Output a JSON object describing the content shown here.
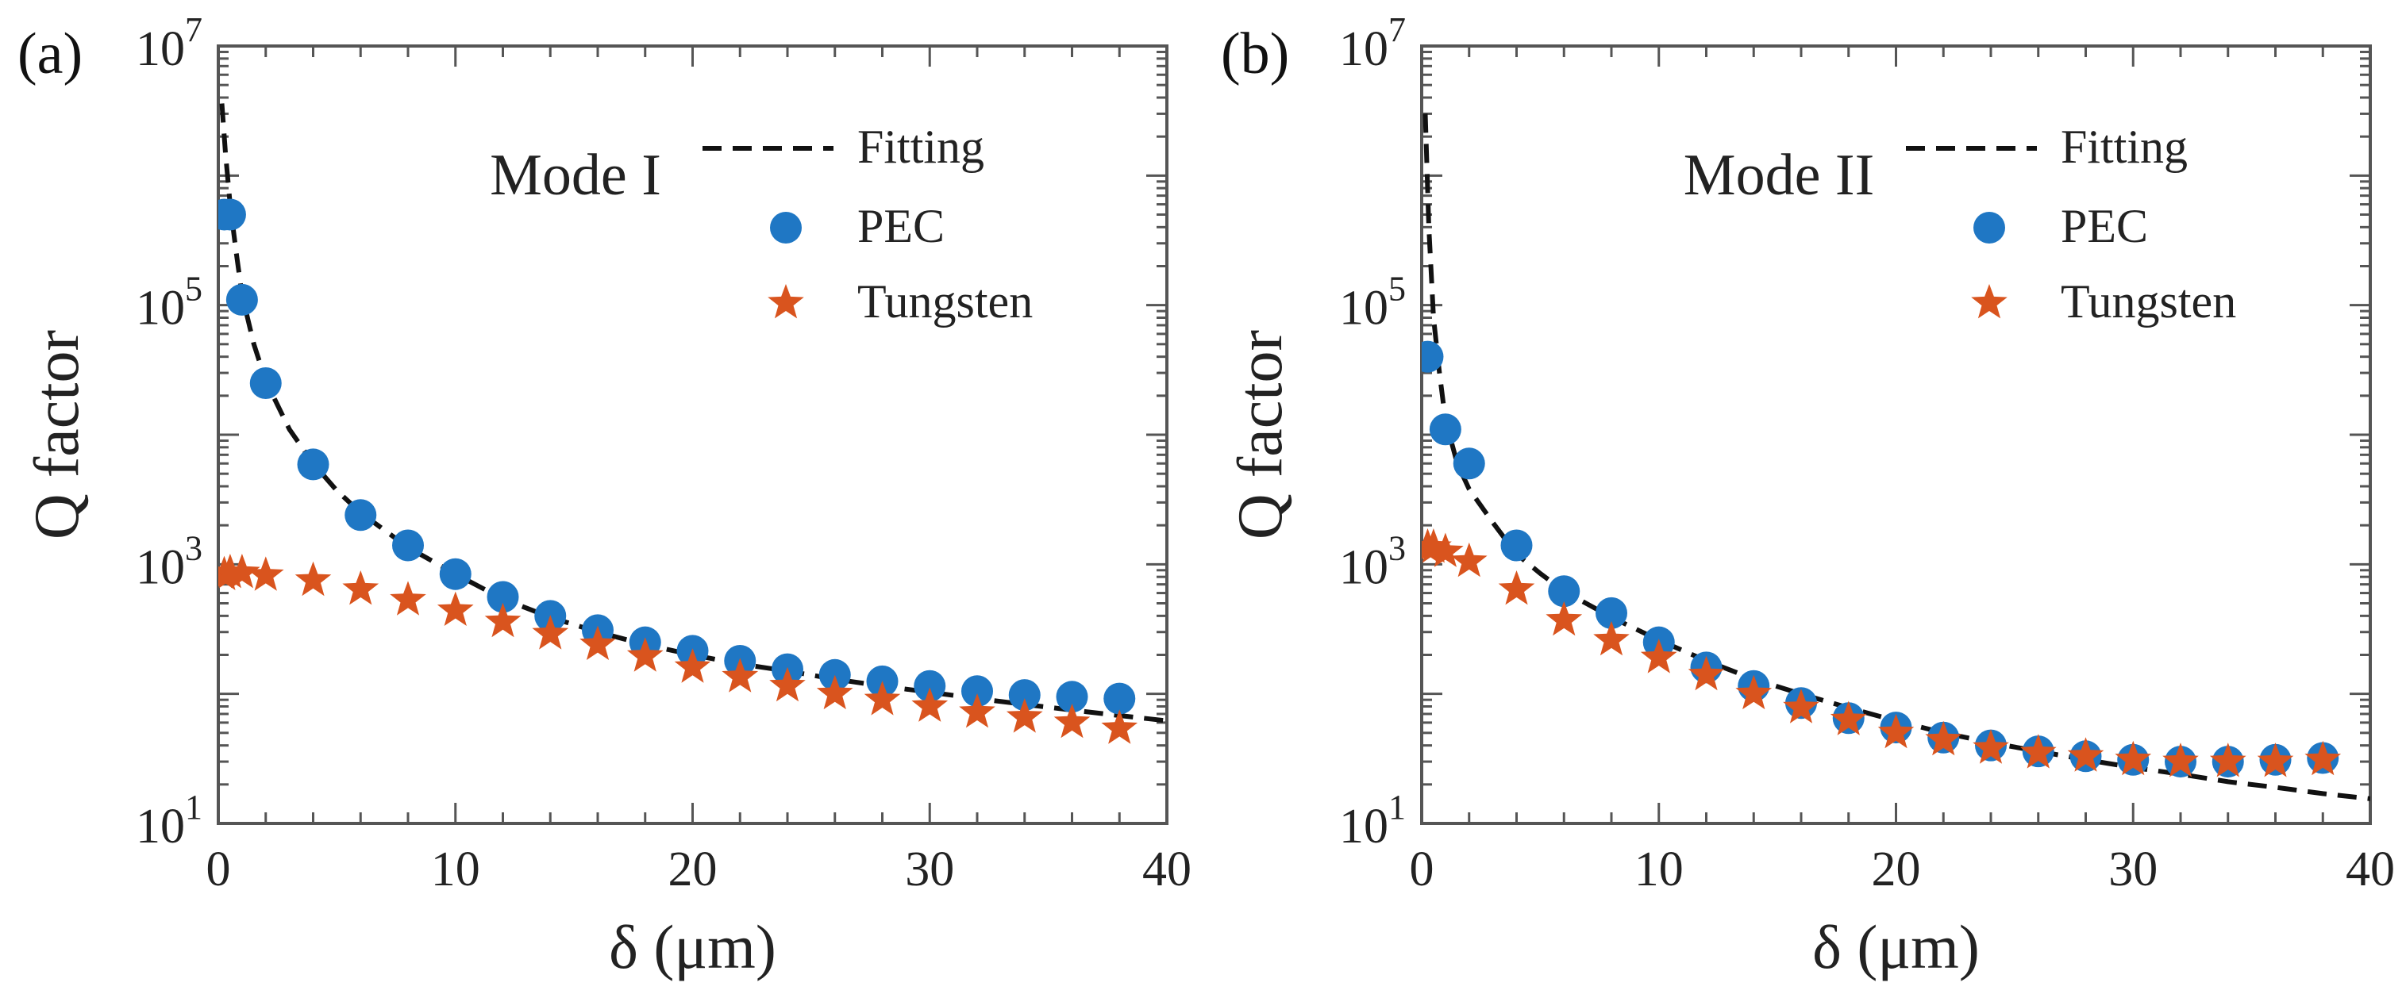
{
  "colors": {
    "pec": "#1f77c4",
    "tungsten": "#d9541e",
    "fitting": "#111111"
  },
  "chart_data": [
    {
      "panel_label": "(a)",
      "type": "scatter",
      "annotation": "Mode I",
      "xlabel": "δ  (μm)",
      "ylabel": "Q factor",
      "xlim": [
        0,
        40
      ],
      "ylim": [
        10,
        10000000
      ],
      "yscale": "log",
      "x_ticks": [
        "0",
        "10",
        "20",
        "30",
        "40"
      ],
      "x_tick_values": [
        0,
        10,
        20,
        30,
        40
      ],
      "y_ticks": [
        {
          "base": "10",
          "exp": "1",
          "value": 10
        },
        {
          "base": "10",
          "exp": "3",
          "value": 1000
        },
        {
          "base": "10",
          "exp": "5",
          "value": 100000
        },
        {
          "base": "10",
          "exp": "7",
          "value": 10000000
        }
      ],
      "legend": [
        "Fitting",
        "PEC",
        "Tungsten"
      ],
      "series": [
        {
          "name": "Fitting",
          "kind": "dashed-line",
          "x": [
            0.15,
            0.3,
            0.5,
            0.75,
            1,
            1.5,
            2,
            3,
            4,
            5,
            6,
            8,
            10,
            12,
            14,
            16,
            18,
            20,
            22,
            24,
            26,
            28,
            30,
            32,
            34,
            36,
            38,
            40
          ],
          "y": [
            3600000,
            1500000,
            600000,
            260000,
            120000,
            50000,
            26000,
            11000,
            6000,
            3700,
            2500,
            1350,
            840,
            540,
            390,
            300,
            240,
            200,
            170,
            150,
            130,
            115,
            103,
            92,
            83,
            75,
            68,
            62
          ]
        },
        {
          "name": "PEC",
          "kind": "circle",
          "x": [
            0.25,
            0.5,
            1,
            2,
            4,
            6,
            8,
            10,
            12,
            14,
            16,
            18,
            20,
            22,
            24,
            26,
            28,
            30,
            32,
            34,
            36,
            38
          ],
          "y": [
            500000,
            500000,
            110000,
            25000,
            5900,
            2400,
            1400,
            840,
            560,
            400,
            310,
            250,
            215,
            180,
            155,
            140,
            125,
            115,
            105,
            98,
            95,
            92
          ]
        },
        {
          "name": "Tungsten",
          "kind": "star",
          "x": [
            0.25,
            0.5,
            1,
            2,
            4,
            6,
            8,
            10,
            12,
            14,
            16,
            18,
            20,
            22,
            24,
            26,
            28,
            30,
            32,
            34,
            36,
            38
          ],
          "y": [
            830,
            860,
            860,
            820,
            750,
            640,
            530,
            440,
            360,
            290,
            240,
            195,
            160,
            135,
            115,
            100,
            90,
            80,
            72,
            66,
            60,
            54
          ]
        }
      ]
    },
    {
      "panel_label": "(b)",
      "type": "scatter",
      "annotation": "Mode II",
      "xlabel": "δ  (μm)",
      "ylabel": "Q factor",
      "xlim": [
        0,
        40
      ],
      "ylim": [
        10,
        10000000
      ],
      "yscale": "log",
      "x_ticks": [
        "0",
        "10",
        "20",
        "30",
        "40"
      ],
      "x_tick_values": [
        0,
        10,
        20,
        30,
        40
      ],
      "y_ticks": [
        {
          "base": "10",
          "exp": "1",
          "value": 10
        },
        {
          "base": "10",
          "exp": "3",
          "value": 1000
        },
        {
          "base": "10",
          "exp": "5",
          "value": 100000
        },
        {
          "base": "10",
          "exp": "7",
          "value": 10000000
        }
      ],
      "legend": [
        "Fitting",
        "PEC",
        "Tungsten"
      ],
      "series": [
        {
          "name": "Fitting",
          "kind": "dashed-line",
          "x": [
            0.15,
            0.3,
            0.5,
            0.75,
            1,
            1.5,
            2,
            3,
            4,
            5,
            6,
            8,
            10,
            12,
            14,
            16,
            18,
            20,
            22,
            24,
            26,
            28,
            30,
            32,
            34,
            36,
            38,
            40
          ],
          "y": [
            3000000,
            400000,
            80000,
            30000,
            13000,
            6000,
            3800,
            2100,
            1200,
            850,
            620,
            390,
            260,
            180,
            130,
            100,
            78,
            62,
            50,
            42,
            36,
            31,
            27,
            24,
            21,
            19,
            17,
            15.5
          ]
        },
        {
          "name": "PEC",
          "kind": "circle",
          "x": [
            0.25,
            1,
            2,
            4,
            6,
            8,
            10,
            12,
            14,
            16,
            18,
            20,
            22,
            24,
            26,
            28,
            30,
            32,
            34,
            36,
            38
          ],
          "y": [
            40000,
            11000,
            6000,
            1400,
            620,
            420,
            250,
            160,
            115,
            85,
            65,
            55,
            46,
            40,
            36,
            33,
            31,
            30,
            30,
            31,
            32
          ]
        },
        {
          "name": "Tungsten",
          "kind": "star",
          "x": [
            0.25,
            0.5,
            1,
            2,
            4,
            6,
            8,
            10,
            12,
            14,
            16,
            18,
            20,
            22,
            24,
            26,
            28,
            30,
            32,
            34,
            36,
            38
          ],
          "y": [
            1350,
            1350,
            1250,
            1050,
            640,
            370,
            260,
            190,
            140,
            100,
            78,
            63,
            50,
            44,
            38,
            35,
            33,
            31,
            30,
            30,
            30,
            31
          ]
        }
      ]
    }
  ]
}
